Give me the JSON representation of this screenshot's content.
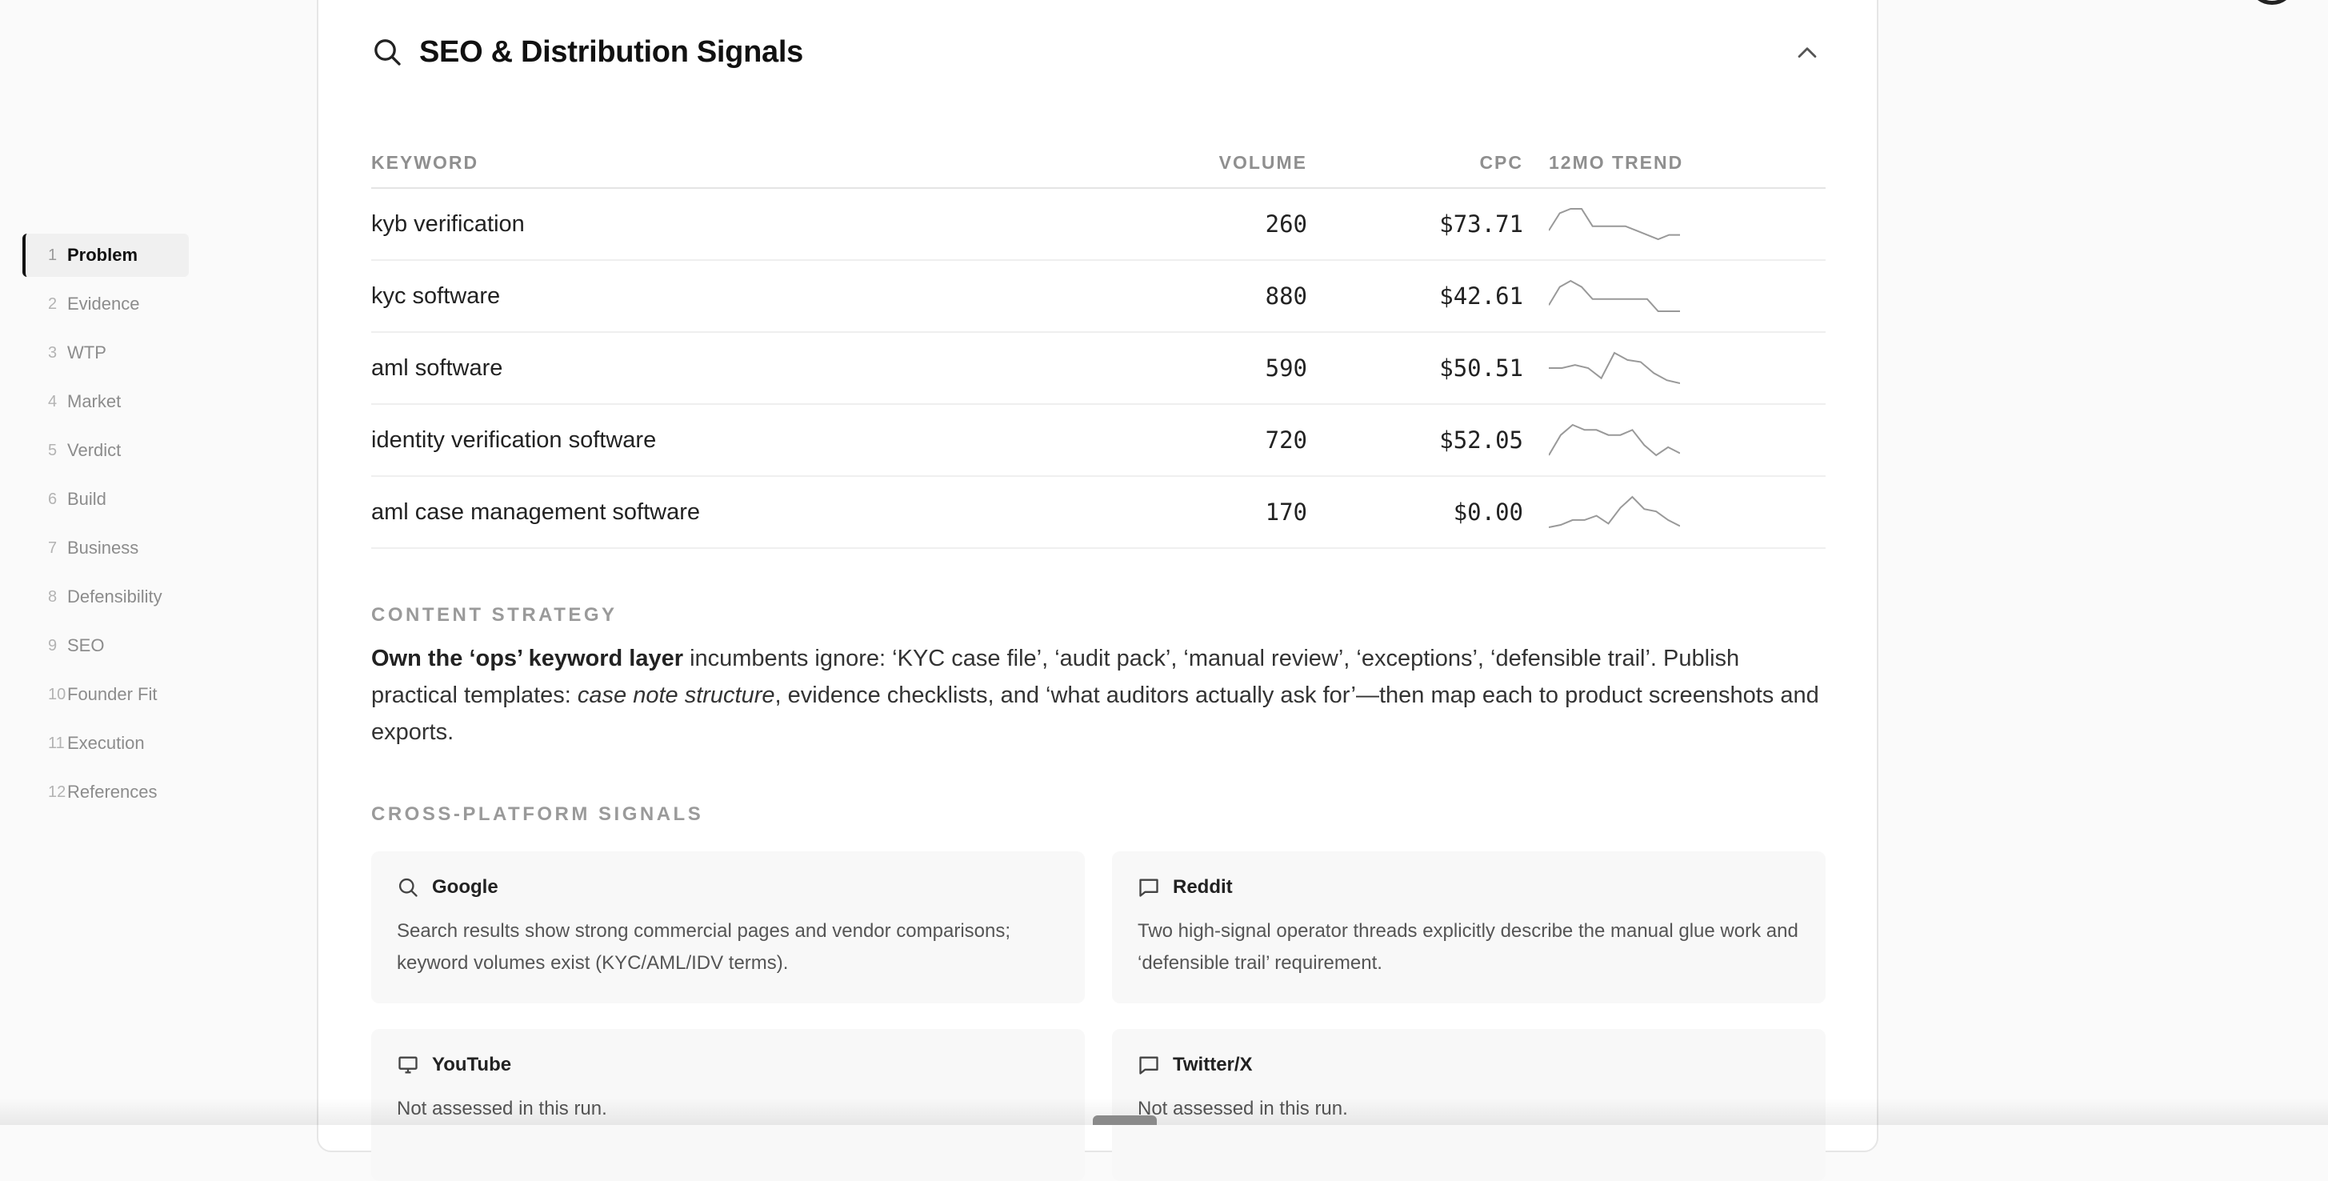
{
  "sidebar": {
    "items": [
      {
        "num": "1",
        "label": "Problem"
      },
      {
        "num": "2",
        "label": "Evidence"
      },
      {
        "num": "3",
        "label": "WTP"
      },
      {
        "num": "4",
        "label": "Market"
      },
      {
        "num": "5",
        "label": "Verdict"
      },
      {
        "num": "6",
        "label": "Build"
      },
      {
        "num": "7",
        "label": "Business"
      },
      {
        "num": "8",
        "label": "Defensibility"
      },
      {
        "num": "9",
        "label": "SEO"
      },
      {
        "num": "10",
        "label": "Founder Fit"
      },
      {
        "num": "11",
        "label": "Execution"
      },
      {
        "num": "12",
        "label": "References"
      }
    ],
    "active_index": 0
  },
  "section": {
    "title": "SEO & Distribution Signals",
    "icon": "search-icon",
    "collapse_icon": "chevron-up-icon"
  },
  "keywords": {
    "headers": {
      "keyword": "KEYWORD",
      "volume": "VOLUME",
      "cpc": "CPC",
      "trend": "12MO TREND"
    },
    "rows": [
      {
        "keyword": "kyb verification",
        "volume": "260",
        "cpc": "$73.71",
        "trend": [
          3,
          7,
          8,
          8,
          4,
          4,
          4,
          4,
          3,
          2,
          1,
          2,
          2
        ]
      },
      {
        "keyword": "kyc software",
        "volume": "880",
        "cpc": "$42.61",
        "trend": [
          3,
          6,
          7,
          6,
          4,
          4,
          4,
          4,
          4,
          4,
          2,
          2,
          2
        ]
      },
      {
        "keyword": "aml software",
        "volume": "590",
        "cpc": "$50.51",
        "trend": [
          5,
          5,
          5.3,
          5,
          4,
          6.5,
          5.8,
          5.6,
          4.5,
          3.8,
          3.5
        ]
      },
      {
        "keyword": "identity verification software",
        "volume": "720",
        "cpc": "$52.05",
        "trend": [
          3,
          5,
          6,
          5.5,
          5.5,
          5,
          5,
          5.5,
          4,
          3,
          3.8,
          3.2
        ]
      },
      {
        "keyword": "aml case management software",
        "volume": "170",
        "cpc": "$0.00",
        "trend": [
          2,
          2.4,
          3.2,
          3.2,
          3.9,
          2.6,
          5.2,
          7,
          5,
          4.6,
          3.2,
          2.2
        ]
      }
    ],
    "trend_color": "#999999"
  },
  "content_strategy": {
    "label": "CONTENT STRATEGY",
    "bold": "Own the ‘ops’ keyword layer",
    "text1": " incumbents ignore: ‘KYC case file’, ‘audit pack’, ‘manual review’, ‘exceptions’, ‘defensible trail’. Publish practical templates: ",
    "italic": "case note structure",
    "text2": ", evidence checklists, and ‘what auditors actually ask for’—then map each to product screenshots and exports."
  },
  "cross_platform": {
    "label": "CROSS-PLATFORM SIGNALS",
    "cards": [
      {
        "title": "Google",
        "icon": "search-icon",
        "desc": "Search results show strong commercial pages and vendor comparisons; keyword volumes exist (KYC/AML/IDV terms)."
      },
      {
        "title": "Reddit",
        "icon": "message-icon",
        "desc": "Two high-signal operator threads explicitly describe the manual glue work and ‘defensible trail’ requirement."
      },
      {
        "title": "YouTube",
        "icon": "monitor-icon",
        "desc": "Not assessed in this run."
      },
      {
        "title": "Twitter/X",
        "icon": "message-icon",
        "desc": "Not assessed in this run."
      }
    ]
  }
}
